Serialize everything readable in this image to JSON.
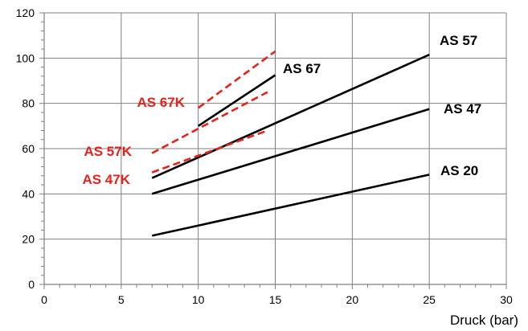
{
  "chart_data": {
    "type": "line",
    "title": "",
    "xlabel": "Druck (bar)",
    "ylabel": "",
    "xlim": [
      0,
      30
    ],
    "ylim": [
      0,
      120
    ],
    "x_ticks": [
      0,
      5,
      10,
      15,
      20,
      25,
      30
    ],
    "y_ticks": [
      0,
      20,
      40,
      60,
      80,
      100,
      120
    ],
    "grid": true,
    "legend": "none",
    "colors": {
      "solid": "#000000",
      "dashed": "#e8211d"
    },
    "series": [
      {
        "name": "AS 20",
        "style": "solid",
        "color": "#000000",
        "x": [
          7,
          25
        ],
        "y": [
          21.5,
          48.5
        ]
      },
      {
        "name": "AS 47",
        "style": "solid",
        "color": "#000000",
        "x": [
          7,
          25
        ],
        "y": [
          40,
          77.5
        ]
      },
      {
        "name": "AS 57",
        "style": "solid",
        "color": "#000000",
        "x": [
          7,
          25
        ],
        "y": [
          47,
          101.5
        ]
      },
      {
        "name": "AS 67",
        "style": "solid",
        "color": "#000000",
        "x": [
          10,
          15
        ],
        "y": [
          70,
          92.5
        ]
      },
      {
        "name": "AS 47K",
        "style": "dashed",
        "color": "#e8211d",
        "x": [
          7,
          14.5
        ],
        "y": [
          49.5,
          68
        ]
      },
      {
        "name": "AS 57K",
        "style": "dashed",
        "color": "#e8211d",
        "x": [
          7,
          14.5
        ],
        "y": [
          58,
          85
        ]
      },
      {
        "name": "AS 67K",
        "style": "dashed",
        "color": "#e8211d",
        "x": [
          10,
          15
        ],
        "y": [
          78,
          103
        ]
      }
    ]
  }
}
